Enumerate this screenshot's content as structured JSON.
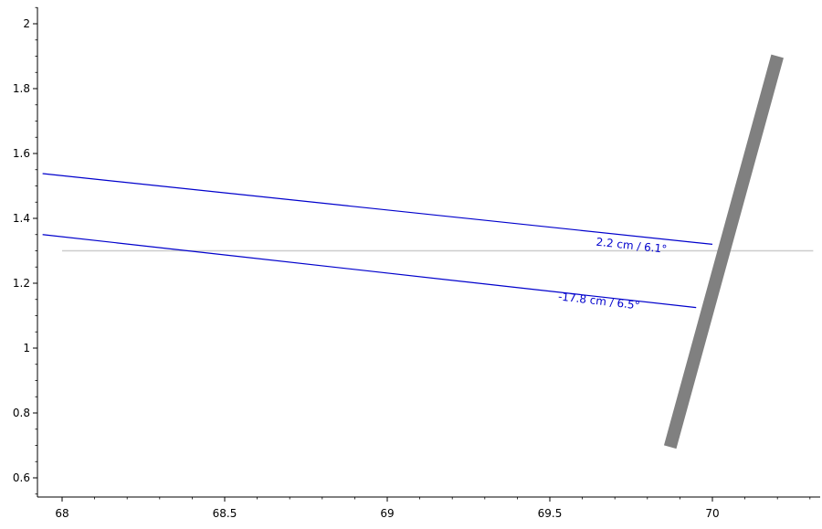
{
  "chart_data": {
    "type": "line",
    "xlim": [
      67.94,
      70.33
    ],
    "ylim": [
      0.55,
      2.06
    ],
    "grid": false,
    "x_ticks": [
      {
        "value": 68,
        "label": "68"
      },
      {
        "value": 68.5,
        "label": "68.5"
      },
      {
        "value": 69,
        "label": "69"
      },
      {
        "value": 69.5,
        "label": "69.5"
      },
      {
        "value": 70,
        "label": "70"
      }
    ],
    "x_minor_step": 0.1,
    "y_ticks": [
      {
        "value": 0.6,
        "label": "0.6"
      },
      {
        "value": 0.8,
        "label": "0.8"
      },
      {
        "value": 1.0,
        "label": "1"
      },
      {
        "value": 1.2,
        "label": "1.2"
      },
      {
        "value": 1.4,
        "label": "1.4"
      },
      {
        "value": 1.6,
        "label": "1.6"
      },
      {
        "value": 1.8,
        "label": "1.8"
      },
      {
        "value": 2.0,
        "label": "2"
      }
    ],
    "y_minor_step": 0.05,
    "reference_line": {
      "y": 1.3,
      "x_start": 68.0,
      "x_end": 70.31,
      "color": "#cccccc"
    },
    "bar": {
      "points": [
        [
          69.87,
          0.695
        ],
        [
          70.2,
          1.9
        ]
      ],
      "color": "#808080"
    },
    "series": [
      {
        "points": [
          [
            67.94,
            1.538
          ],
          [
            70.0,
            1.32
          ]
        ],
        "color": "#0000cc",
        "label": "2.2 cm / 6.1°",
        "label_at": [
          69.75,
          1.305
        ],
        "label_angle": 6.1
      },
      {
        "points": [
          [
            67.94,
            1.35
          ],
          [
            69.95,
            1.125
          ]
        ],
        "color": "#0000cc",
        "label": "-17.8 cm / 6.5°",
        "label_at": [
          69.65,
          1.134
        ],
        "label_angle": 6.5
      }
    ]
  }
}
